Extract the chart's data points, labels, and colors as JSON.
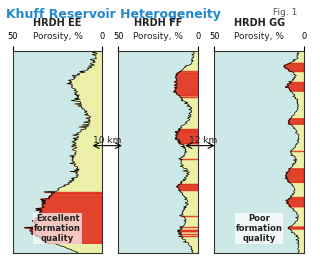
{
  "title": "Khuff Reservoir Heterogeneity",
  "fig_label": "Fig. 1",
  "panels": [
    {
      "title": "HRDH EE",
      "subtitle": "Porosity, %",
      "xlim": [
        50,
        0
      ],
      "annotation": "Excellent\nformation\nquality"
    },
    {
      "title": "HRDH FF",
      "subtitle": "Porosity, %",
      "xlim": [
        50,
        0
      ],
      "distance": "10 km"
    },
    {
      "title": "HRDH GG",
      "subtitle": "Porosity, %",
      "xlim": [
        50,
        0
      ],
      "distance": "12 km",
      "annotation": "Poor\nformation\nquality"
    }
  ],
  "bg_color": "#ffffff",
  "panel_bg": "#f5f5f5",
  "grid_color": "#cccccc",
  "teal_color": "#7ececa",
  "yellow_color": "#f0f0a0",
  "red_color": "#e03020",
  "title_color": "#2288cc",
  "text_color": "#222222"
}
